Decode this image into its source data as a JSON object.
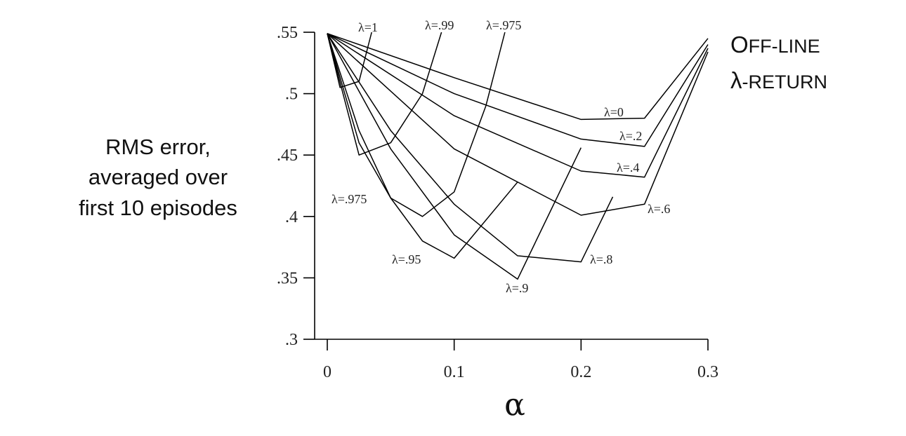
{
  "chart_data": {
    "type": "line",
    "title": [
      "Off-line",
      "λ-return"
    ],
    "xlabel": "α",
    "ylabel": [
      "RMS error,",
      "averaged over",
      "first 10 episodes"
    ],
    "xlim": [
      0,
      0.3
    ],
    "ylim": [
      0.3,
      0.55
    ],
    "xticks": [
      0,
      0.1,
      0.2,
      0.3
    ],
    "xtick_labels": [
      "0",
      "0.1",
      "0.2",
      "0.3"
    ],
    "yticks": [
      0.3,
      0.35,
      0.4,
      0.45,
      0.5,
      0.55
    ],
    "ytick_labels": [
      ".3",
      ".35",
      ".4",
      ".45",
      ".5",
      ".55"
    ],
    "grid": false,
    "series": [
      {
        "name": "λ=0",
        "label": "λ=0",
        "x": [
          0,
          0.1,
          0.2,
          0.25,
          0.3
        ],
        "y": [
          0.549,
          0.513,
          0.479,
          0.48,
          0.545
        ]
      },
      {
        "name": "λ=.2",
        "label": "λ=.2",
        "x": [
          0,
          0.1,
          0.2,
          0.25,
          0.3
        ],
        "y": [
          0.549,
          0.5,
          0.463,
          0.457,
          0.54
        ]
      },
      {
        "name": "λ=.4",
        "label": "λ=.4",
        "x": [
          0,
          0.1,
          0.2,
          0.25,
          0.3
        ],
        "y": [
          0.549,
          0.482,
          0.437,
          0.432,
          0.537
        ]
      },
      {
        "name": "λ=.6",
        "label": "λ=.6",
        "x": [
          0,
          0.1,
          0.2,
          0.25,
          0.3
        ],
        "y": [
          0.549,
          0.455,
          0.401,
          0.41,
          0.534
        ]
      },
      {
        "name": "λ=.8",
        "label": "λ=.8",
        "x": [
          0,
          0.05,
          0.1,
          0.15,
          0.2,
          0.225
        ],
        "y": [
          0.549,
          0.47,
          0.41,
          0.368,
          0.363,
          0.416
        ]
      },
      {
        "name": "λ=.9",
        "label": "λ=.9",
        "x": [
          0,
          0.05,
          0.1,
          0.15,
          0.2
        ],
        "y": [
          0.549,
          0.455,
          0.385,
          0.349,
          0.456
        ]
      },
      {
        "name": "λ=.95",
        "label": "λ=.95",
        "x": [
          0,
          0.025,
          0.05,
          0.075,
          0.1,
          0.15
        ],
        "y": [
          0.549,
          0.47,
          0.415,
          0.38,
          0.366,
          0.428
        ]
      },
      {
        "name": "λ=.975",
        "label": "λ=.975",
        "x": [
          0,
          0.025,
          0.05,
          0.075,
          0.1,
          0.125,
          0.14
        ],
        "y": [
          0.549,
          0.46,
          0.415,
          0.4,
          0.42,
          0.49,
          0.55
        ]
      },
      {
        "name": "λ=.99",
        "label": "λ=.99",
        "x": [
          0,
          0.025,
          0.05,
          0.075,
          0.09
        ],
        "y": [
          0.549,
          0.45,
          0.46,
          0.5,
          0.55
        ]
      },
      {
        "name": "λ=1",
        "label": "λ=1",
        "x": [
          0,
          0.01,
          0.025,
          0.035
        ],
        "y": [
          0.549,
          0.505,
          0.51,
          0.55
        ]
      }
    ]
  }
}
